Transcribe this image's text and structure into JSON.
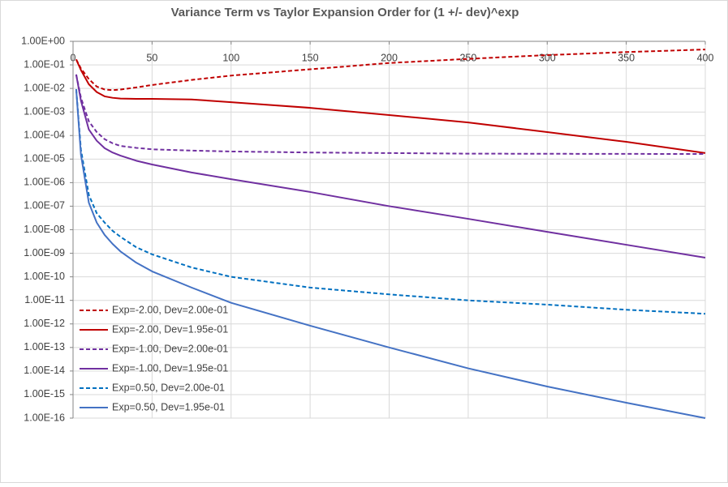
{
  "chart_data": {
    "type": "line",
    "title": "Variance Term vs Taylor Expansion Order for (1 +/- dev)^exp",
    "log_y": true,
    "grid": true,
    "legend": "bottom-left",
    "x": [
      2,
      5,
      10,
      15,
      20,
      25,
      30,
      40,
      50,
      75,
      100,
      150,
      200,
      250,
      300,
      350,
      400
    ],
    "xlim": [
      0,
      400
    ],
    "xticks": [
      0,
      50,
      100,
      150,
      200,
      250,
      300,
      350,
      400
    ],
    "ylim": [
      1e-16,
      1
    ],
    "yticks": [
      {
        "value": 1,
        "label": "1.00E+00"
      },
      {
        "value": 0.1,
        "label": "1.00E-01"
      },
      {
        "value": 0.01,
        "label": "1.00E-02"
      },
      {
        "value": 0.001,
        "label": "1.00E-03"
      },
      {
        "value": 0.0001,
        "label": "1.00E-04"
      },
      {
        "value": 1e-05,
        "label": "1.00E-05"
      },
      {
        "value": 1e-06,
        "label": "1.00E-06"
      },
      {
        "value": 1e-07,
        "label": "1.00E-07"
      },
      {
        "value": 1e-08,
        "label": "1.00E-08"
      },
      {
        "value": 1e-09,
        "label": "1.00E-09"
      },
      {
        "value": 1e-10,
        "label": "1.00E-10"
      },
      {
        "value": 1e-11,
        "label": "1.00E-11"
      },
      {
        "value": 1e-12,
        "label": "1.00E-12"
      },
      {
        "value": 1e-13,
        "label": "1.00E-13"
      },
      {
        "value": 1e-14,
        "label": "1.00E-14"
      },
      {
        "value": 1e-15,
        "label": "1.00E-15"
      },
      {
        "value": 1e-16,
        "label": "1.00E-16"
      }
    ],
    "series": [
      {
        "name": "Exp=-2.00, Dev=2.00e-01",
        "color": "#c00000",
        "dash": true,
        "values": [
          0.17,
          0.07,
          0.025,
          0.012,
          0.009,
          0.0085,
          0.009,
          0.011,
          0.014,
          0.023,
          0.035,
          0.065,
          0.12,
          0.18,
          0.26,
          0.35,
          0.45
        ]
      },
      {
        "name": "Exp=-2.00, Dev=1.95e-01",
        "color": "#c00000",
        "dash": false,
        "values": [
          0.17,
          0.06,
          0.015,
          0.007,
          0.0046,
          0.004,
          0.0037,
          0.0036,
          0.0036,
          0.0034,
          0.0026,
          0.0015,
          0.00074,
          0.00036,
          0.00014,
          5.4e-05,
          1.8e-05
        ]
      },
      {
        "name": "Exp=-1.00, Dev=2.00e-01",
        "color": "#7030a0",
        "dash": true,
        "values": [
          0.039,
          0.004,
          0.0004,
          0.00014,
          7e-05,
          4.7e-05,
          3.6e-05,
          3e-05,
          2.6e-05,
          2.3e-05,
          2.1e-05,
          1.9e-05,
          1.8e-05,
          1.7e-05,
          1.68e-05,
          1.66e-05,
          1.65e-05
        ]
      },
      {
        "name": "Exp=-1.00, Dev=1.95e-01",
        "color": "#7030a0",
        "dash": false,
        "values": [
          0.039,
          0.003,
          0.00018,
          6e-05,
          2.9e-05,
          1.9e-05,
          1.4e-05,
          8.5e-06,
          5.9e-06,
          2.7e-06,
          1.4e-06,
          4e-07,
          1e-07,
          2.9e-08,
          8.1e-09,
          2.3e-09,
          6.5e-10
        ]
      },
      {
        "name": "Exp=0.50, Dev=2.00e-01",
        "color": "#0070c0",
        "dash": true,
        "values": [
          0.0093,
          2.5e-05,
          3e-07,
          5e-08,
          2e-08,
          9e-09,
          5e-09,
          1.8e-09,
          9e-10,
          2.5e-10,
          1e-10,
          3.5e-11,
          1.8e-11,
          1e-11,
          6.6e-12,
          4e-12,
          2.7e-12
        ]
      },
      {
        "name": "Exp=0.50, Dev=1.95e-01",
        "color": "#4472c4",
        "dash": false,
        "values": [
          0.0093,
          1.5e-05,
          1.4e-07,
          2e-08,
          6e-09,
          2.5e-09,
          1.2e-09,
          4e-10,
          1.7e-10,
          3.5e-11,
          7.9e-12,
          8.4e-13,
          1e-13,
          1.3e-14,
          2.2e-15,
          4.5e-16,
          1e-16
        ]
      }
    ]
  }
}
